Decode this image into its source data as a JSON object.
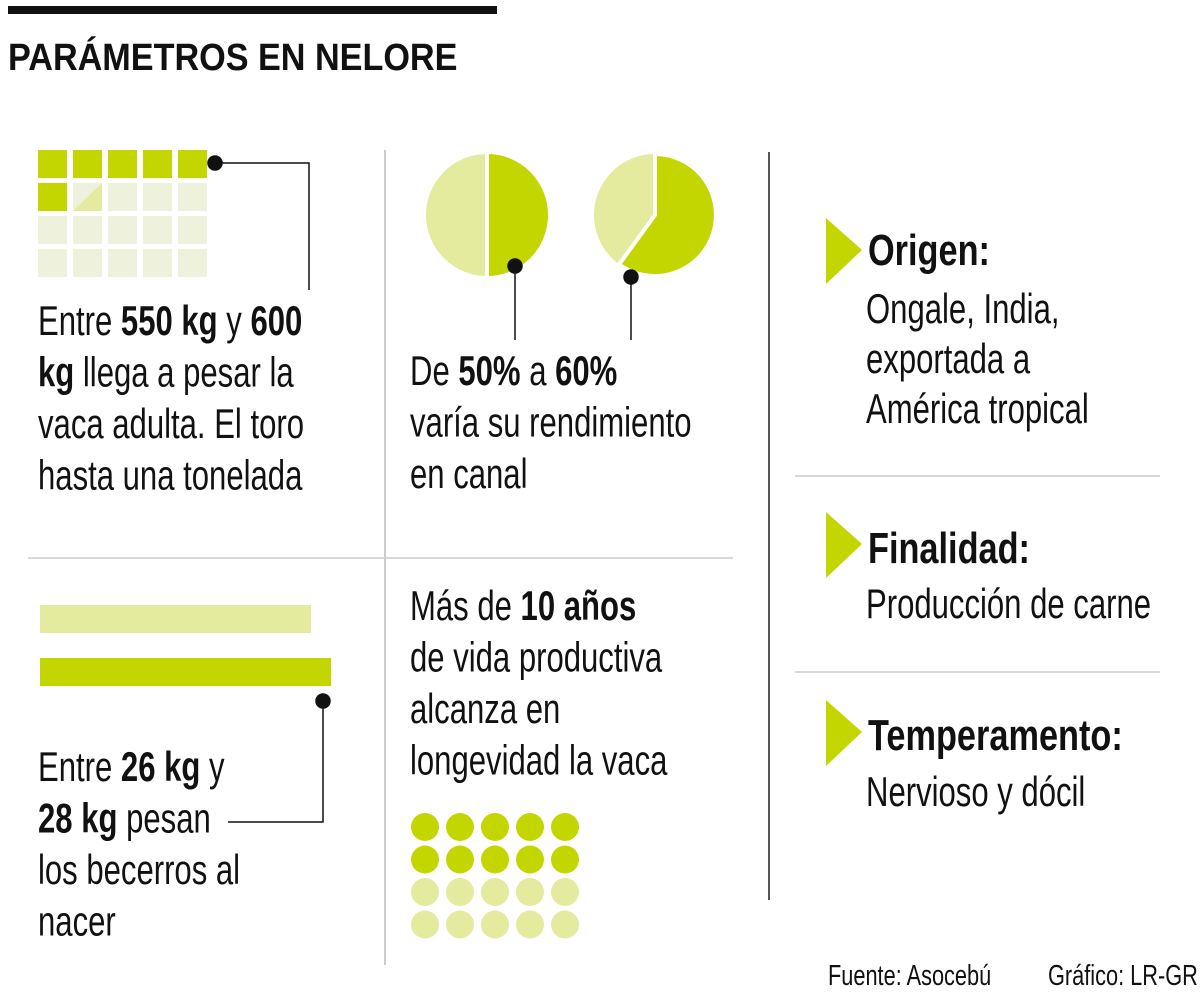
{
  "title": "PARÁMETROS EN NELORE",
  "blocks": [
    {
      "lines": [
        [
          {
            "text": "Entre "
          },
          {
            "text": "550 kg",
            "bold": true
          },
          {
            "text": " y "
          },
          {
            "text": "600",
            "bold": true
          }
        ],
        [
          {
            "text": "kg",
            "bold": true
          },
          {
            "text": " llega a pesar la"
          }
        ],
        [
          {
            "text": "vaca adulta. El toro"
          }
        ],
        [
          {
            "text": "hasta una tonelada"
          }
        ]
      ]
    },
    {
      "lines": [
        [
          {
            "text": "De "
          },
          {
            "text": "50%",
            "bold": true
          },
          {
            "text": " a "
          },
          {
            "text": "60%",
            "bold": true
          }
        ],
        [
          {
            "text": "varía su rendimiento"
          }
        ],
        [
          {
            "text": "en canal"
          }
        ]
      ]
    },
    {
      "lines": [
        [
          {
            "text": "Entre "
          },
          {
            "text": "26 kg",
            "bold": true
          },
          {
            "text": " y"
          }
        ],
        [
          {
            "text": "28 kg",
            "bold": true
          },
          {
            "text": " pesan"
          }
        ],
        [
          {
            "text": "los becerros al"
          }
        ],
        [
          {
            "text": "nacer"
          }
        ]
      ]
    },
    {
      "lines": [
        [
          {
            "text": "Más de "
          },
          {
            "text": "10 años",
            "bold": true
          }
        ],
        [
          {
            "text": "de vida productiva"
          }
        ],
        [
          {
            "text": "alcanza en"
          }
        ],
        [
          {
            "text": "longevidad la vaca"
          }
        ]
      ]
    }
  ],
  "facts": [
    {
      "heading": "Origen:",
      "lines": [
        "Ongale, India,",
        "exportada a",
        "América tropical"
      ]
    },
    {
      "heading": "Finalidad:",
      "lines": [
        "Producción de carne"
      ]
    },
    {
      "heading": "Temperamento:",
      "lines": [
        "Nervioso y dócil"
      ]
    }
  ],
  "footer": {
    "source": "Fuente: Asocebú",
    "credit": "Gráfico: LR-GR"
  }
}
